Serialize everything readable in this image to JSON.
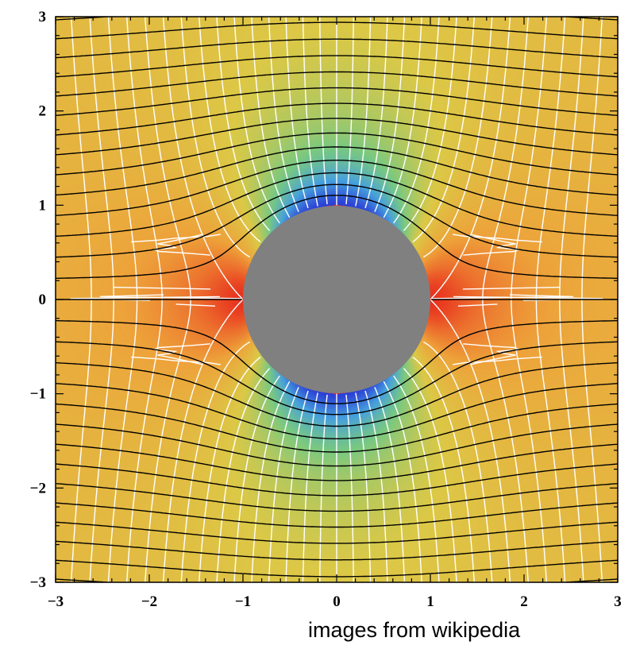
{
  "chart_data": {
    "type": "heatmap",
    "description_title": "",
    "xlim": [
      -3,
      3
    ],
    "ylim": [
      -3,
      3
    ],
    "x_ticks": [
      -3,
      -2,
      -1,
      0,
      1,
      2,
      3
    ],
    "y_ticks": [
      -3,
      -2,
      -1,
      0,
      1,
      2,
      3
    ],
    "x_tick_labels": [
      "−3",
      "−2",
      "−1",
      "0",
      "1",
      "2",
      "3"
    ],
    "y_tick_labels": [
      "−3",
      "−2",
      "−1",
      "0",
      "1",
      "2",
      "3"
    ],
    "cylinder": {
      "center": [
        0,
        0
      ],
      "radius": 1,
      "color": "#808080"
    },
    "uniform_flow_speed": 1,
    "streamline_values": [
      -3.0,
      -2.8,
      -2.6,
      -2.4,
      -2.2,
      -2.0,
      -1.8,
      -1.6,
      -1.4,
      -1.2,
      -1.0,
      -0.8,
      -0.6,
      -0.4,
      -0.2,
      0.0,
      0.2,
      0.4,
      0.6,
      0.8,
      1.0,
      1.2,
      1.4,
      1.6,
      1.8,
      2.0,
      2.2,
      2.4,
      2.6,
      2.8,
      3.0
    ],
    "potential_line_values": [
      -3.0,
      -2.8,
      -2.6,
      -2.4,
      -2.2,
      -2.0,
      -1.8,
      -1.6,
      -1.4,
      -1.2,
      -1.0,
      -0.8,
      -0.6,
      -0.4,
      -0.2,
      0.0,
      0.2,
      0.4,
      0.6,
      0.8,
      1.0,
      1.2,
      1.4,
      1.6,
      1.8,
      2.0,
      2.2,
      2.4,
      2.6,
      2.8,
      3.0
    ],
    "colors": {
      "streamlines": "#000000",
      "potential_lines": "#ffffff",
      "high_pressure": "#e8321e",
      "ambient": "#eda33a",
      "low_pressure": "#2b3fd6"
    }
  },
  "credit": "images from wikipedia"
}
